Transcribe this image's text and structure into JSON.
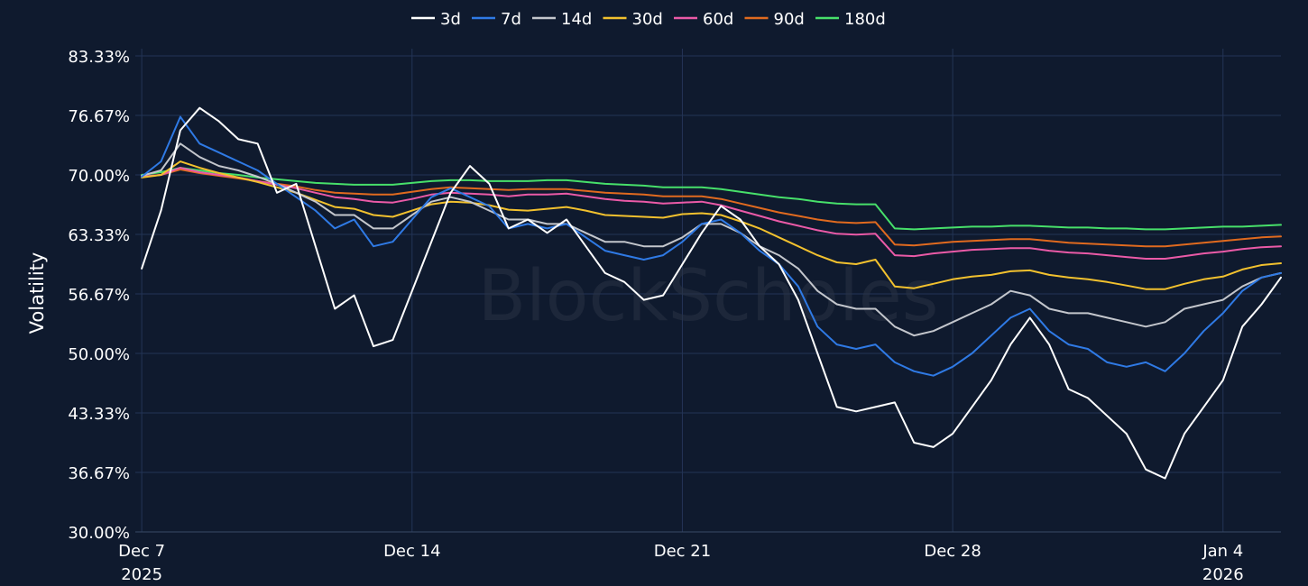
{
  "chart_data": {
    "type": "line",
    "title": "",
    "ylabel": "Volatility",
    "xlabel": "",
    "watermark": "BlockScholes",
    "legend_position": "top-center",
    "grid": true,
    "background_color": "#0f1a2e",
    "ylim": [
      30,
      83.33
    ],
    "y_ticks": [
      "30.00%",
      "36.67%",
      "43.33%",
      "50.00%",
      "56.67%",
      "63.33%",
      "70.00%",
      "76.67%",
      "83.33%"
    ],
    "y_tick_values": [
      30.0,
      36.67,
      43.33,
      50.0,
      56.67,
      63.33,
      70.0,
      76.67,
      83.33
    ],
    "xlim": [
      "2025-12-06T20:00",
      "2026-01-05T12:00"
    ],
    "x_ticks": [
      {
        "date": "2025-12-07",
        "line1": "Dec 7",
        "line2": "2025"
      },
      {
        "date": "2025-12-14",
        "line1": "Dec 14",
        "line2": ""
      },
      {
        "date": "2025-12-21",
        "line1": "Dec 21",
        "line2": ""
      },
      {
        "date": "2025-12-28",
        "line1": "Dec 28",
        "line2": ""
      },
      {
        "date": "2026-01-04",
        "line1": "Jan 4",
        "line2": "2026"
      }
    ],
    "x": [
      "2025-12-07T00:00",
      "2025-12-07T12:00",
      "2025-12-08T00:00",
      "2025-12-08T12:00",
      "2025-12-09T00:00",
      "2025-12-09T12:00",
      "2025-12-10T00:00",
      "2025-12-10T12:00",
      "2025-12-11T00:00",
      "2025-12-11T12:00",
      "2025-12-12T00:00",
      "2025-12-12T12:00",
      "2025-12-13T00:00",
      "2025-12-13T12:00",
      "2025-12-14T00:00",
      "2025-12-14T12:00",
      "2025-12-15T00:00",
      "2025-12-15T12:00",
      "2025-12-16T00:00",
      "2025-12-16T12:00",
      "2025-12-17T00:00",
      "2025-12-17T12:00",
      "2025-12-18T00:00",
      "2025-12-18T12:00",
      "2025-12-19T00:00",
      "2025-12-19T12:00",
      "2025-12-20T00:00",
      "2025-12-20T12:00",
      "2025-12-21T00:00",
      "2025-12-21T12:00",
      "2025-12-22T00:00",
      "2025-12-22T12:00",
      "2025-12-23T00:00",
      "2025-12-23T12:00",
      "2025-12-24T00:00",
      "2025-12-24T12:00",
      "2025-12-25T00:00",
      "2025-12-25T12:00",
      "2025-12-26T00:00",
      "2025-12-26T12:00",
      "2025-12-27T00:00",
      "2025-12-27T12:00",
      "2025-12-28T00:00",
      "2025-12-28T12:00",
      "2025-12-29T00:00",
      "2025-12-29T12:00",
      "2025-12-30T00:00",
      "2025-12-30T12:00",
      "2025-12-31T00:00",
      "2025-12-31T12:00",
      "2026-01-01T00:00",
      "2026-01-01T12:00",
      "2026-01-02T00:00",
      "2026-01-02T12:00",
      "2026-01-03T00:00",
      "2026-01-03T12:00",
      "2026-01-04T00:00",
      "2026-01-04T12:00",
      "2026-01-05T00:00",
      "2026-01-05T12:00"
    ],
    "series": [
      {
        "name": "3d",
        "color": "#ffffff",
        "values": [
          59.5,
          66.0,
          75.0,
          77.5,
          76.0,
          74.0,
          73.5,
          68.0,
          69.0,
          62.0,
          55.0,
          56.5,
          50.8,
          51.5,
          57.0,
          62.5,
          68.0,
          71.0,
          69.0,
          64.0,
          65.0,
          63.5,
          65.0,
          62.0,
          59.0,
          58.0,
          56.0,
          56.5,
          60.0,
          63.5,
          66.5,
          65.0,
          62.0,
          60.0,
          56.0,
          50.0,
          44.0,
          43.5,
          44.0,
          44.5,
          40.0,
          39.5,
          41.0,
          44.0,
          47.0,
          51.0,
          54.0,
          51.0,
          46.0,
          45.0,
          43.0,
          41.0,
          37.0,
          36.0,
          41.0,
          44.0,
          47.0,
          53.0,
          55.5,
          58.5
        ]
      },
      {
        "name": "7d",
        "color": "#2f7ae5",
        "values": [
          69.8,
          71.5,
          76.5,
          73.5,
          72.5,
          71.5,
          70.5,
          69.0,
          67.5,
          66.0,
          64.0,
          65.0,
          62.0,
          62.5,
          65.0,
          67.5,
          68.5,
          67.5,
          66.5,
          64.0,
          64.5,
          64.0,
          64.5,
          63.0,
          61.5,
          61.0,
          60.5,
          61.0,
          62.5,
          64.5,
          65.0,
          63.5,
          61.5,
          60.0,
          57.5,
          53.0,
          51.0,
          50.5,
          51.0,
          49.0,
          48.0,
          47.5,
          48.5,
          50.0,
          52.0,
          54.0,
          55.0,
          52.5,
          51.0,
          50.5,
          49.0,
          48.5,
          49.0,
          48.0,
          50.0,
          52.5,
          54.5,
          57.0,
          58.5,
          59.0
        ]
      },
      {
        "name": "14d",
        "color": "#c3c6cc",
        "values": [
          69.9,
          70.5,
          73.5,
          72.0,
          71.0,
          70.5,
          69.8,
          69.0,
          68.0,
          67.0,
          65.5,
          65.5,
          64.0,
          64.0,
          65.5,
          67.0,
          67.5,
          67.0,
          66.0,
          65.0,
          65.0,
          64.5,
          64.5,
          63.5,
          62.5,
          62.5,
          62.0,
          62.0,
          63.0,
          64.5,
          64.5,
          63.5,
          62.0,
          61.0,
          59.5,
          57.0,
          55.5,
          55.0,
          55.0,
          53.0,
          52.0,
          52.5,
          53.5,
          54.5,
          55.5,
          57.0,
          56.5,
          55.0,
          54.5,
          54.5,
          54.0,
          53.5,
          53.0,
          53.5,
          55.0,
          55.5,
          56.0,
          57.5,
          58.5,
          59.0
        ]
      },
      {
        "name": "30d",
        "color": "#f2c12e",
        "values": [
          69.7,
          70.0,
          71.5,
          70.8,
          70.2,
          69.7,
          69.2,
          68.6,
          68.0,
          67.2,
          66.4,
          66.2,
          65.5,
          65.3,
          66.0,
          66.7,
          67.0,
          66.9,
          66.6,
          66.1,
          66.0,
          66.2,
          66.4,
          66.0,
          65.5,
          65.4,
          65.3,
          65.2,
          65.6,
          65.7,
          65.5,
          64.8,
          64.0,
          63.0,
          62.0,
          61.0,
          60.2,
          60.0,
          60.5,
          57.5,
          57.3,
          57.8,
          58.3,
          58.6,
          58.8,
          59.2,
          59.3,
          58.8,
          58.5,
          58.3,
          58.0,
          57.6,
          57.2,
          57.2,
          57.8,
          58.3,
          58.6,
          59.4,
          59.9,
          60.1
        ]
      },
      {
        "name": "60d",
        "color": "#ea5aa7",
        "values": [
          69.8,
          70.0,
          70.8,
          70.3,
          70.0,
          69.7,
          69.3,
          68.9,
          68.5,
          68.0,
          67.5,
          67.3,
          67.0,
          66.9,
          67.3,
          67.8,
          68.0,
          67.9,
          67.8,
          67.6,
          67.8,
          67.8,
          67.9,
          67.6,
          67.3,
          67.1,
          67.0,
          66.8,
          66.9,
          67.0,
          66.6,
          66.0,
          65.4,
          64.8,
          64.3,
          63.8,
          63.4,
          63.3,
          63.4,
          61.0,
          60.9,
          61.2,
          61.4,
          61.6,
          61.7,
          61.8,
          61.8,
          61.5,
          61.3,
          61.2,
          61.0,
          60.8,
          60.6,
          60.6,
          60.9,
          61.2,
          61.4,
          61.7,
          61.9,
          62.0
        ]
      },
      {
        "name": "90d",
        "color": "#e06a1f",
        "values": [
          69.8,
          70.0,
          70.6,
          70.2,
          69.9,
          69.6,
          69.3,
          69.0,
          68.7,
          68.3,
          68.0,
          67.9,
          67.8,
          67.8,
          68.1,
          68.4,
          68.6,
          68.5,
          68.4,
          68.3,
          68.4,
          68.4,
          68.4,
          68.2,
          68.0,
          67.9,
          67.8,
          67.6,
          67.6,
          67.6,
          67.3,
          66.8,
          66.3,
          65.8,
          65.4,
          65.0,
          64.7,
          64.6,
          64.7,
          62.2,
          62.1,
          62.3,
          62.5,
          62.6,
          62.7,
          62.8,
          62.8,
          62.6,
          62.4,
          62.3,
          62.2,
          62.1,
          62.0,
          62.0,
          62.2,
          62.4,
          62.6,
          62.8,
          63.0,
          63.1
        ]
      },
      {
        "name": "180d",
        "color": "#47e06a",
        "values": [
          70.0,
          70.3,
          70.8,
          70.5,
          70.2,
          70.0,
          69.7,
          69.5,
          69.3,
          69.1,
          69.0,
          68.9,
          68.9,
          68.9,
          69.1,
          69.3,
          69.4,
          69.4,
          69.3,
          69.3,
          69.3,
          69.4,
          69.4,
          69.2,
          69.0,
          68.9,
          68.8,
          68.6,
          68.6,
          68.6,
          68.4,
          68.1,
          67.8,
          67.5,
          67.3,
          67.0,
          66.8,
          66.7,
          66.7,
          64.0,
          63.9,
          64.0,
          64.1,
          64.2,
          64.2,
          64.3,
          64.3,
          64.2,
          64.1,
          64.1,
          64.0,
          64.0,
          63.9,
          63.9,
          64.0,
          64.1,
          64.2,
          64.2,
          64.3,
          64.4
        ]
      }
    ]
  }
}
